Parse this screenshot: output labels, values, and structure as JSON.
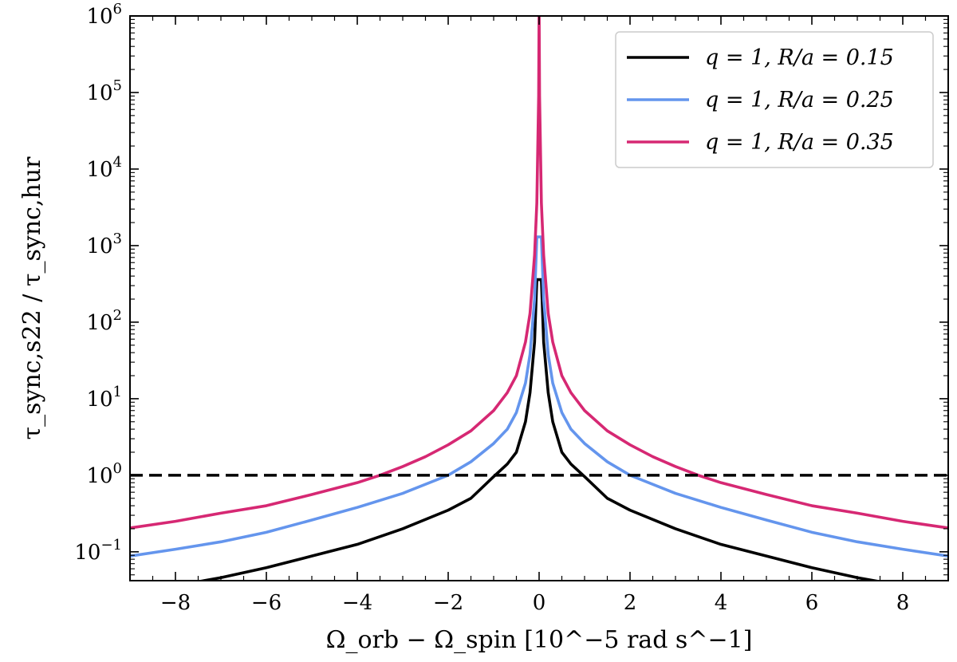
{
  "chart_data": {
    "type": "line",
    "xlabel": "Ω_orb − Ω_spin [10^−5 rad s^−1]",
    "ylabel": "τ_sync,s22 / τ_sync,hur",
    "xlim": [
      -9,
      9
    ],
    "ylim": [
      0.042,
      1000000
    ],
    "yscale": "log",
    "grid": false,
    "legend_position": "top-right",
    "x_ticks": [
      -8,
      -6,
      -4,
      -2,
      0,
      2,
      4,
      6,
      8
    ],
    "x_tick_labels": [
      "−8",
      "−6",
      "−4",
      "−2",
      "0",
      "2",
      "4",
      "6",
      "8"
    ],
    "y_ticks": [
      0.1,
      1,
      10,
      100,
      1000,
      10000,
      100000,
      1000000
    ],
    "y_tick_labels": [
      {
        "base": "10",
        "exp": "−1"
      },
      {
        "base": "10",
        "exp": "0"
      },
      {
        "base": "10",
        "exp": "1"
      },
      {
        "base": "10",
        "exp": "2"
      },
      {
        "base": "10",
        "exp": "3"
      },
      {
        "base": "10",
        "exp": "4"
      },
      {
        "base": "10",
        "exp": "5"
      },
      {
        "base": "10",
        "exp": "6"
      }
    ],
    "reference_line": {
      "y": 1,
      "style": "dashed",
      "color": "#000000"
    },
    "series": [
      {
        "name": "q = 1, R/a = 0.15",
        "color": "#000000",
        "x": [
          0.05,
          0.1,
          0.2,
          0.3,
          0.5,
          0.7,
          1.0,
          1.5,
          2.0,
          3.0,
          4.0,
          5.0,
          6.0,
          7.0,
          8.0,
          9.0
        ],
        "y": [
          360,
          55,
          12,
          5,
          2.0,
          1.4,
          0.96,
          0.5,
          0.35,
          0.2,
          0.125,
          0.088,
          0.062,
          0.046,
          0.036,
          0.029
        ]
      },
      {
        "name": "q = 1, R/a = 0.25",
        "color": "#6495ed",
        "x": [
          0.05,
          0.1,
          0.2,
          0.3,
          0.5,
          0.7,
          1.0,
          1.5,
          2.0,
          3.0,
          4.0,
          5.0,
          6.0,
          7.0,
          8.0,
          9.0
        ],
        "y": [
          1300,
          200,
          38,
          16,
          6.6,
          4.0,
          2.6,
          1.5,
          1.0,
          0.58,
          0.38,
          0.26,
          0.18,
          0.135,
          0.108,
          0.088
        ]
      },
      {
        "name": "q = 1, R/a = 0.35",
        "color": "#d62873",
        "x": [
          0.001,
          0.01,
          0.05,
          0.1,
          0.2,
          0.3,
          0.5,
          0.7,
          1.0,
          1.5,
          2.0,
          2.5,
          3.0,
          3.5,
          4.0,
          5.0,
          6.0,
          7.0,
          8.0,
          9.0
        ],
        "y": [
          1000000,
          90000,
          3600,
          750,
          130,
          55,
          20,
          12,
          7,
          3.8,
          2.5,
          1.75,
          1.3,
          1.0,
          0.8,
          0.56,
          0.4,
          0.32,
          0.25,
          0.205
        ]
      }
    ]
  }
}
